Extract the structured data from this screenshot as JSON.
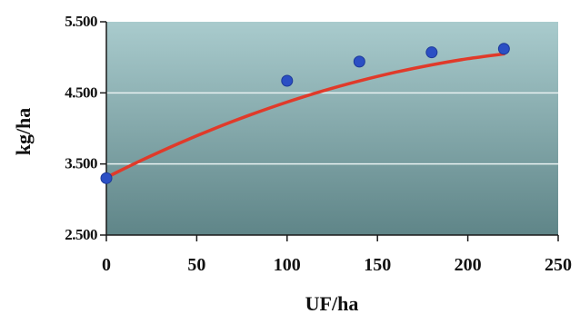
{
  "chart_data": {
    "type": "scatter",
    "title": "",
    "xlabel": "UF/ha",
    "ylabel": "kg/ha",
    "xlim": [
      0,
      250
    ],
    "ylim": [
      2500,
      5500
    ],
    "xticks": [
      0,
      50,
      100,
      150,
      200,
      250
    ],
    "xtick_labels": [
      "0",
      "50",
      "100",
      "150",
      "200",
      "250"
    ],
    "yticks": [
      2500,
      3500,
      4500,
      5500
    ],
    "ytick_labels": [
      "2.500",
      "3.500",
      "4.500",
      "5.500"
    ],
    "grid": "horizontal",
    "legend": "none",
    "series": [
      {
        "kind": "points",
        "x": [
          0,
          100,
          140,
          180,
          220
        ],
        "y": [
          3300,
          4670,
          4940,
          5070,
          5120
        ],
        "color": "#2b4fc4"
      },
      {
        "kind": "trendline",
        "x": [
          0,
          20,
          40,
          60,
          80,
          100,
          120,
          140,
          160,
          180,
          200,
          220
        ],
        "y": [
          3310,
          3558,
          3788,
          4000,
          4194,
          4370,
          4528,
          4668,
          4790,
          4894,
          4980,
          5048
        ],
        "color": "#e03a2a"
      }
    ],
    "plot_gradient": [
      "#a9cbcd",
      "#5f8588"
    ]
  }
}
